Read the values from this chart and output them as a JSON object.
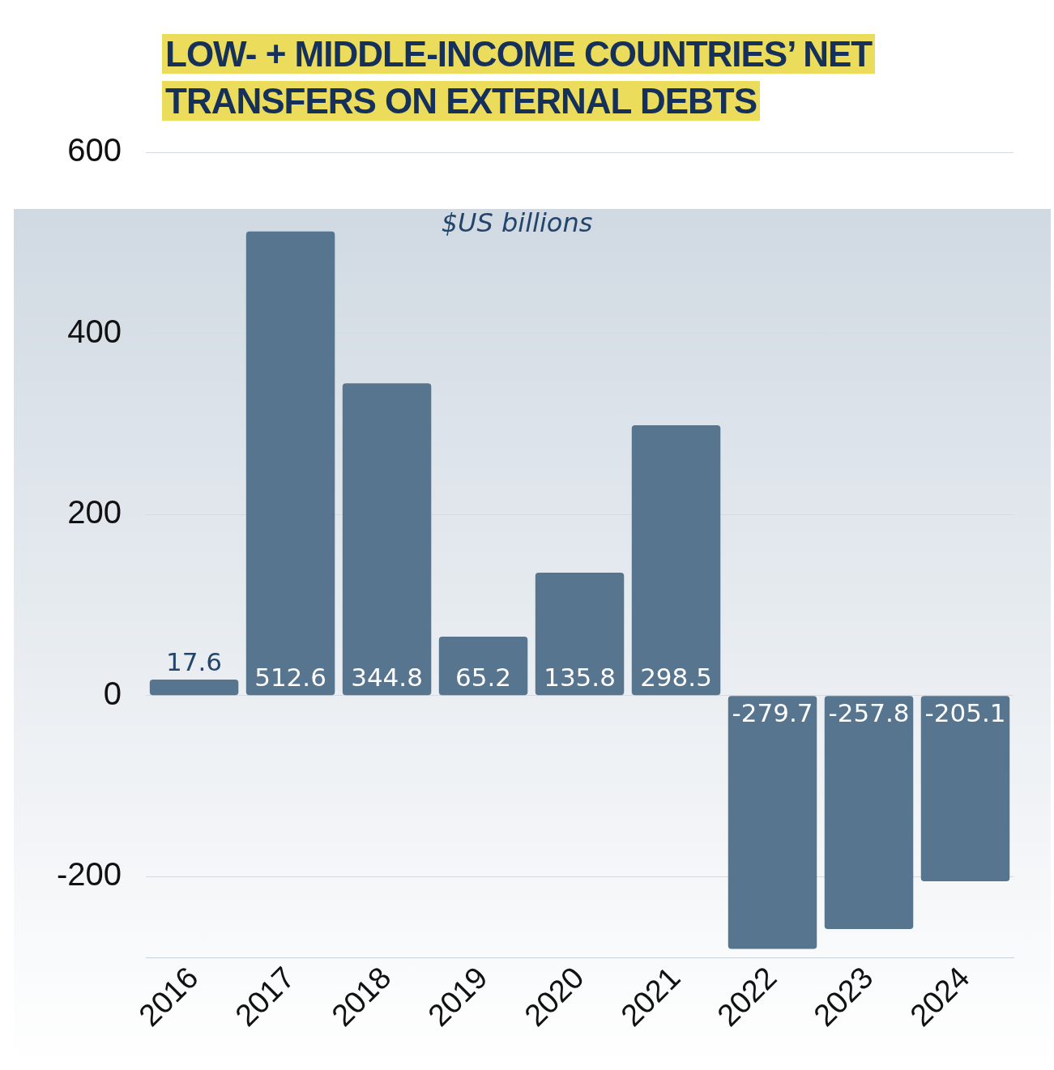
{
  "chart_data": {
    "type": "bar",
    "title": "LOW- +  MIDDLE-INCOME COUNTRIES’ NET TRANSFERS ON EXTERNAL DEBTS",
    "subtitle": "$US billions",
    "categories": [
      "2016",
      "2017",
      "2018",
      "2019",
      "2020",
      "2021",
      "2022",
      "2023",
      "2024"
    ],
    "values": [
      17.6,
      512.6,
      344.8,
      65.2,
      135.8,
      298.5,
      -279.7,
      -257.8,
      -205.1
    ],
    "color": "#57758f",
    "ylim": [
      -290,
      600
    ],
    "yticks": [
      600,
      400,
      200,
      0,
      -200
    ],
    "grid": "y",
    "data_labels": true,
    "legend": false
  }
}
